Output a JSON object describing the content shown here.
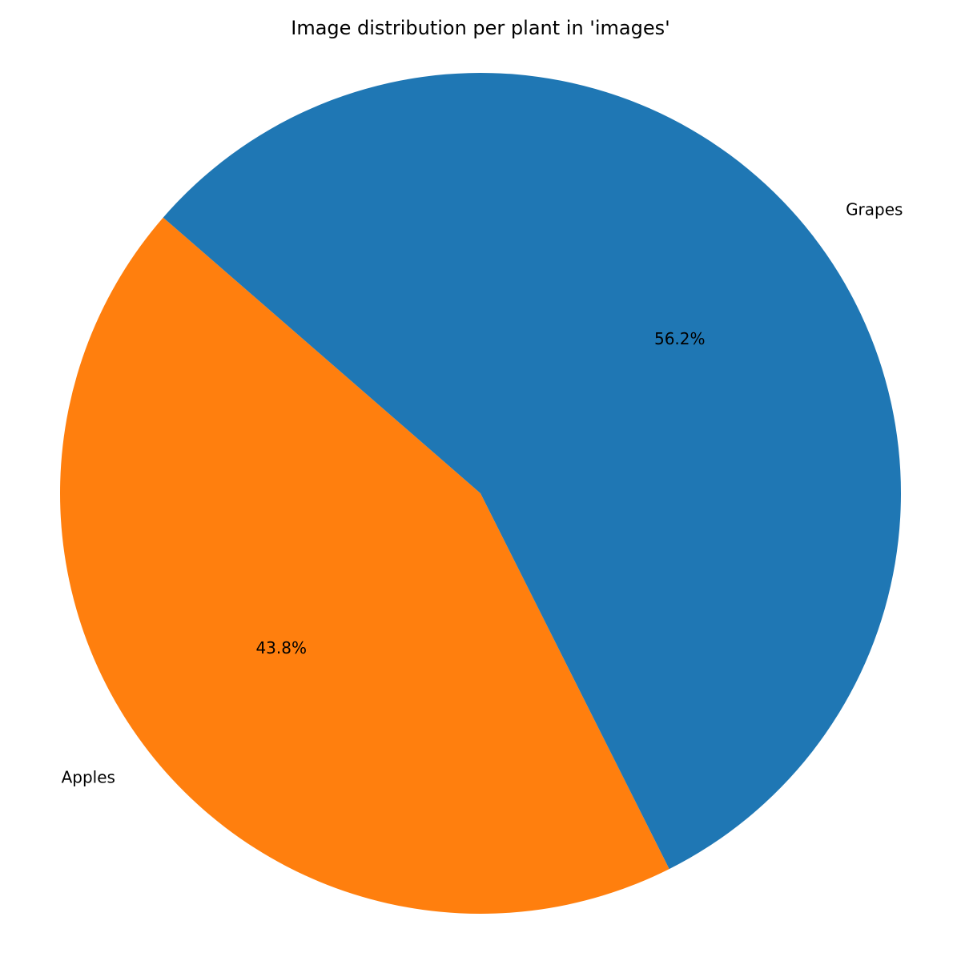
{
  "chart_data": {
    "type": "pie",
    "title": "Image distribution per plant in 'images'",
    "start_angle_deg": 139,
    "direction": "counterclockwise",
    "slices": [
      {
        "label": "Apples",
        "value": 43.8,
        "pct_label": "43.8%",
        "color": "#ff7f0e"
      },
      {
        "label": "Grapes",
        "value": 56.2,
        "pct_label": "56.2%",
        "color": "#1f77b4"
      }
    ]
  }
}
